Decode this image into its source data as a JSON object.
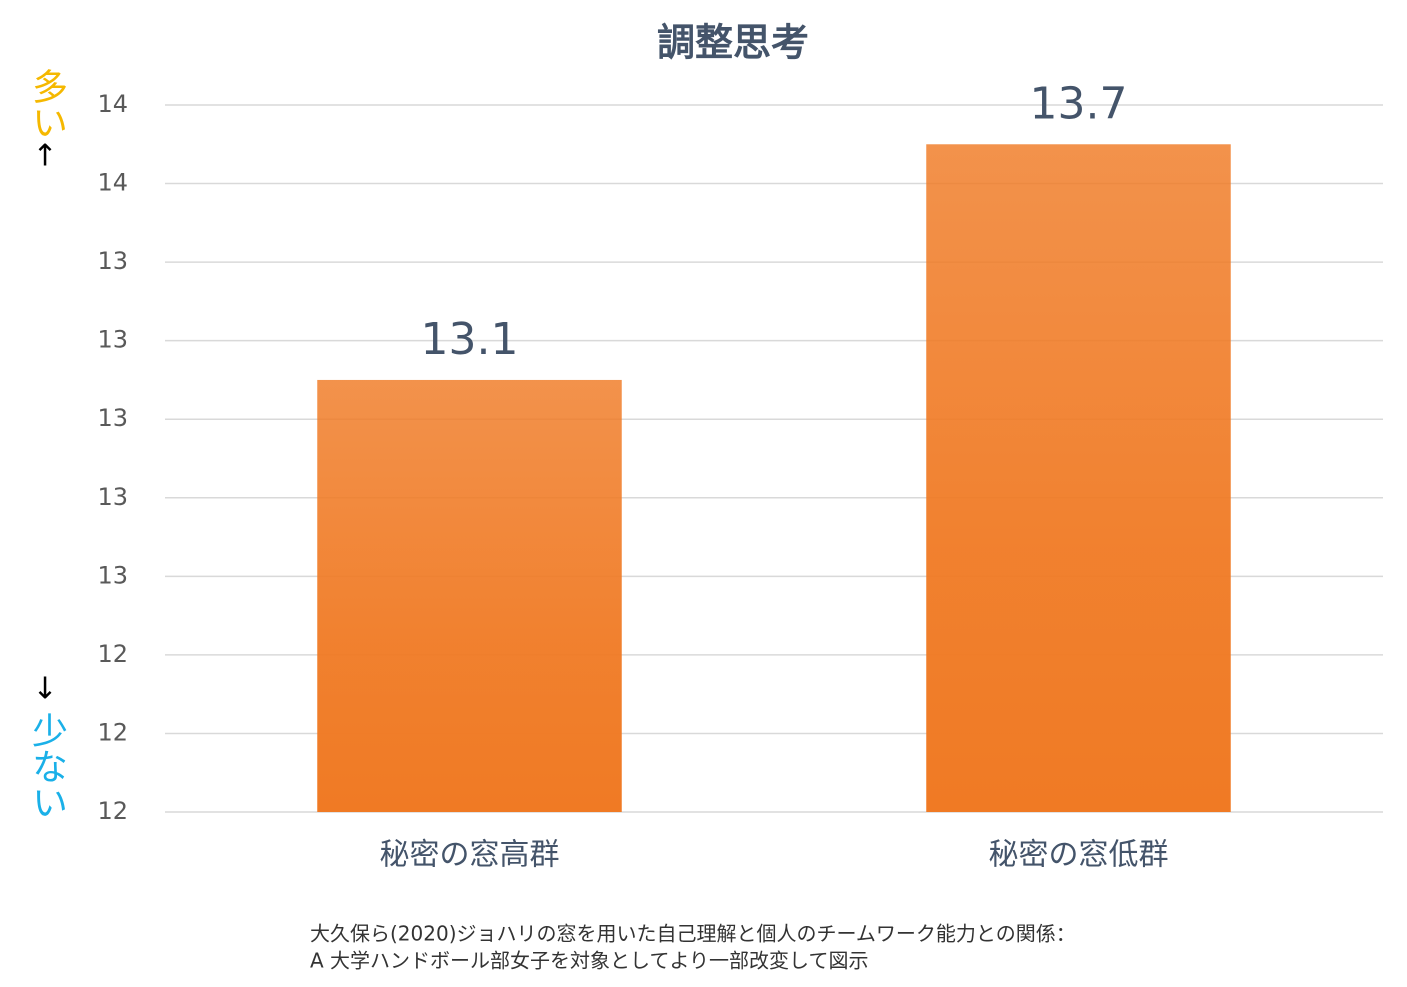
{
  "chart_data": {
    "type": "bar",
    "title": "調整思考",
    "categories": [
      "秘密の窓高群",
      "秘密の窓低群"
    ],
    "values": [
      13.1,
      13.7
    ],
    "color": "#f07a24",
    "ylim": [
      12,
      13.8
    ],
    "yticks": [
      {
        "value": 12,
        "label": "12"
      },
      {
        "value": 12.2,
        "label": "12"
      },
      {
        "value": 12.4,
        "label": "12"
      },
      {
        "value": 12.6,
        "label": "13"
      },
      {
        "value": 12.8,
        "label": "13"
      },
      {
        "value": 13,
        "label": "13"
      },
      {
        "value": 13.2,
        "label": "13"
      },
      {
        "value": 13.4,
        "label": "13"
      },
      {
        "value": 13.6,
        "label": "14"
      },
      {
        "value": 13.8,
        "label": "14"
      }
    ],
    "grid": true,
    "annotations": {
      "top": "多い",
      "top_arrow": "↑",
      "bottom_arrow": "↓",
      "bottom": "少ない"
    },
    "source": [
      "大久保ら(2020)ジョハリの窓を用いた自己理解と個人のチームワーク能力との関係：",
      "A 大学ハンドボール部女子を対象としてより一部改変して図示"
    ]
  }
}
